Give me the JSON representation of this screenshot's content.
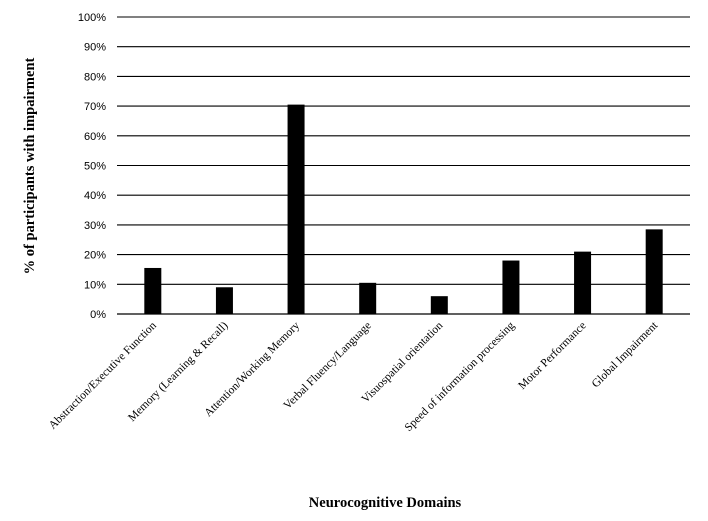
{
  "chart_data": {
    "type": "bar",
    "categories": [
      "Abstraction/Executive Function",
      "Memory (Learning & Recall)",
      "Attention/Working Memory",
      "Verbal Fluency/Language",
      "Visuospatial orientation",
      "Speed of information processing",
      "Motor Performance",
      "Global Impairment"
    ],
    "values": [
      15.5,
      9.0,
      70.5,
      10.5,
      6.0,
      18.0,
      21.0,
      28.5
    ],
    "ylim": [
      0,
      100
    ],
    "yticks": [
      "0%",
      "10%",
      "20%",
      "30%",
      "40%",
      "50%",
      "60%",
      "70%",
      "80%",
      "90%",
      "100%"
    ],
    "xlabel": "Neurocognitive Domains",
    "ylabel": "% of participants with impairment",
    "grid": true,
    "bar_color": "#000000"
  }
}
